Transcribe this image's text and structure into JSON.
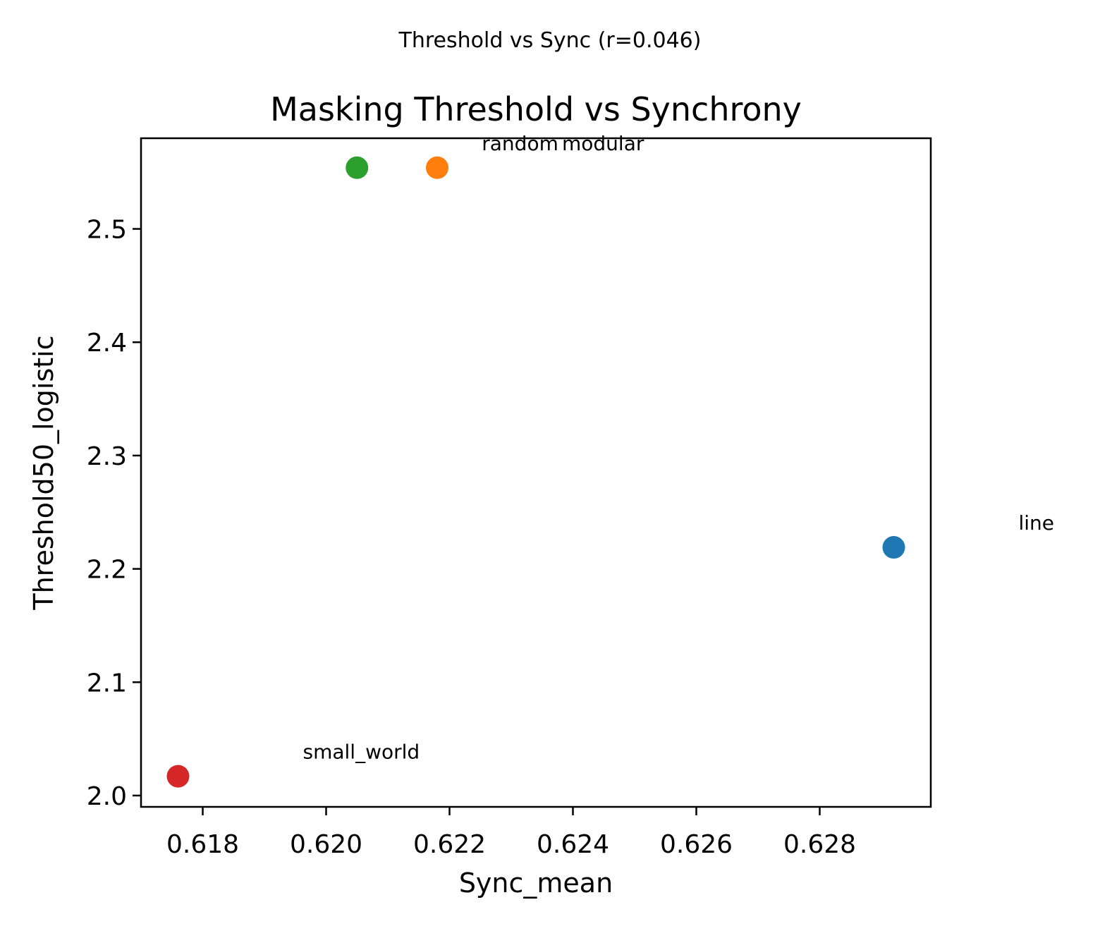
{
  "figure": {
    "suptitle": "Threshold vs Sync (r=0.046)"
  },
  "chart_data": {
    "type": "scatter",
    "title": "Masking Threshold vs Synchrony",
    "xlabel": "Sync_mean",
    "ylabel": "Threshold50_logistic",
    "xlim": [
      0.617,
      0.6298
    ],
    "ylim": [
      1.99,
      2.58
    ],
    "grid": false,
    "xticks": [
      0.618,
      0.62,
      0.622,
      0.624,
      0.626,
      0.628
    ],
    "xtick_labels": [
      "0.618",
      "0.620",
      "0.622",
      "0.624",
      "0.626",
      "0.628"
    ],
    "yticks": [
      2.0,
      2.1,
      2.2,
      2.3,
      2.4,
      2.5
    ],
    "ytick_labels": [
      "2.0",
      "2.1",
      "2.2",
      "2.3",
      "2.4",
      "2.5"
    ],
    "points": [
      {
        "label": "line",
        "x": 0.6292,
        "y": 2.219,
        "color": "#1f77b4"
      },
      {
        "label": "modular",
        "x": 0.6218,
        "y": 2.554,
        "color": "#ff7f0e"
      },
      {
        "label": "random",
        "x": 0.6205,
        "y": 2.554,
        "color": "#2ca02c"
      },
      {
        "label": "small_world",
        "x": 0.6176,
        "y": 2.017,
        "color": "#d62728"
      }
    ]
  }
}
